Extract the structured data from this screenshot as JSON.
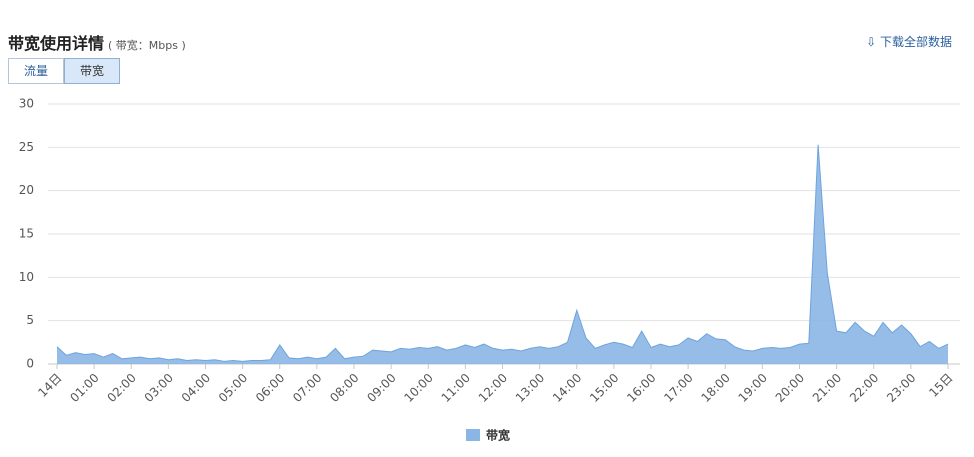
{
  "header": {
    "title": "带宽使用详情",
    "subtitle": "( 带宽：Mbps )",
    "download": "下载全部数据"
  },
  "tabs": [
    "流量",
    "带宽"
  ],
  "chart_data": {
    "type": "area",
    "categories": [
      "14日",
      null,
      null,
      null,
      "01:00",
      null,
      null,
      null,
      "02:00",
      null,
      null,
      null,
      "03:00",
      null,
      null,
      null,
      "04:00",
      null,
      null,
      null,
      "05:00",
      null,
      null,
      null,
      "06:00",
      null,
      null,
      null,
      "07:00",
      null,
      null,
      null,
      "08:00",
      null,
      null,
      null,
      "09:00",
      null,
      null,
      null,
      "10:00",
      null,
      null,
      null,
      "11:00",
      null,
      null,
      null,
      "12:00",
      null,
      null,
      null,
      "13:00",
      null,
      null,
      null,
      "14:00",
      null,
      null,
      null,
      "15:00",
      null,
      null,
      null,
      "16:00",
      null,
      null,
      null,
      "17:00",
      null,
      null,
      null,
      "18:00",
      null,
      null,
      null,
      "19:00",
      null,
      null,
      null,
      "20:00",
      null,
      null,
      null,
      "21:00",
      null,
      null,
      null,
      "22:00",
      null,
      null,
      null,
      "23:00",
      null,
      null,
      null,
      "15日"
    ],
    "series": [
      {
        "name": "带宽",
        "color": "#8ab6e6",
        "values": [
          2.0,
          1.0,
          1.3,
          1.1,
          1.2,
          0.8,
          1.2,
          0.6,
          0.7,
          0.8,
          0.6,
          0.7,
          0.5,
          0.6,
          0.4,
          0.5,
          0.4,
          0.5,
          0.3,
          0.4,
          0.3,
          0.4,
          0.4,
          0.5,
          2.2,
          0.7,
          0.6,
          0.8,
          0.6,
          0.8,
          1.8,
          0.6,
          0.8,
          0.9,
          1.6,
          1.5,
          1.4,
          1.8,
          1.7,
          1.9,
          1.8,
          2.0,
          1.6,
          1.8,
          2.2,
          1.9,
          2.3,
          1.8,
          1.6,
          1.7,
          1.5,
          1.8,
          2.0,
          1.8,
          2.0,
          2.5,
          6.2,
          3.0,
          1.8,
          2.2,
          2.5,
          2.3,
          1.9,
          3.8,
          1.9,
          2.3,
          2.0,
          2.2,
          3.0,
          2.6,
          3.5,
          2.9,
          2.8,
          2.0,
          1.6,
          1.5,
          1.8,
          1.9,
          1.8,
          1.9,
          2.3,
          2.4,
          25.3,
          10.5,
          3.8,
          3.6,
          4.8,
          3.8,
          3.2,
          4.8,
          3.6,
          4.5,
          3.5,
          2.0,
          2.6,
          1.8,
          2.3
        ]
      }
    ],
    "ylim": [
      0,
      30
    ],
    "yticks": [
      0,
      5,
      10,
      15,
      20,
      25,
      30
    ],
    "grid": true
  }
}
